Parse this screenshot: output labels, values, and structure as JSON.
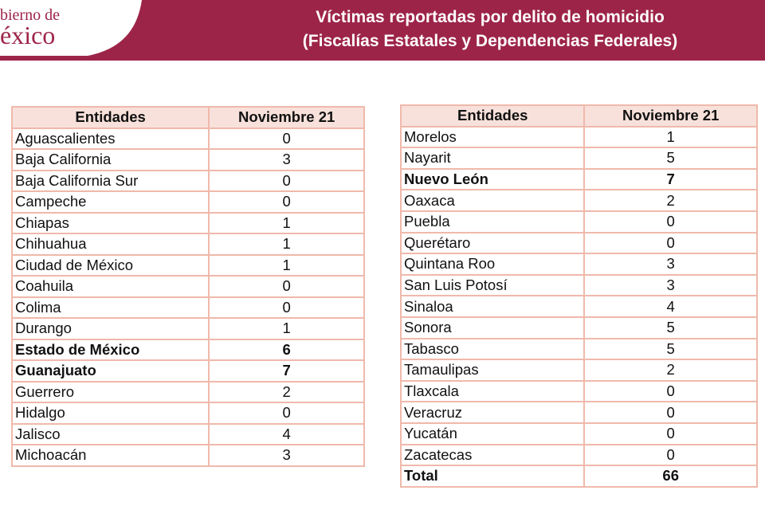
{
  "header": {
    "logo": [
      "bierno de",
      "éxico"
    ],
    "title": [
      "Víctimas reportadas por delito de homicidio",
      "(Fiscalías Estatales y Dependencias Federales)"
    ]
  },
  "tables": [
    {
      "columns": [
        "Entidades",
        "Noviembre 21"
      ],
      "rows": [
        {
          "entity": "Aguascalientes",
          "value": 0
        },
        {
          "entity": "Baja California",
          "value": 3
        },
        {
          "entity": "Baja California Sur",
          "value": 0
        },
        {
          "entity": "Campeche",
          "value": 0
        },
        {
          "entity": "Chiapas",
          "value": 1
        },
        {
          "entity": "Chihuahua",
          "value": 1
        },
        {
          "entity": "Ciudad de México",
          "value": 1
        },
        {
          "entity": "Coahuila",
          "value": 0
        },
        {
          "entity": "Colima",
          "value": 0
        },
        {
          "entity": "Durango",
          "value": 1
        },
        {
          "entity": "Estado de México",
          "value": 6,
          "bold": true
        },
        {
          "entity": "Guanajuato",
          "value": 7,
          "bold": true
        },
        {
          "entity": "Guerrero",
          "value": 2
        },
        {
          "entity": "Hidalgo",
          "value": 0
        },
        {
          "entity": "Jalisco",
          "value": 4
        },
        {
          "entity": "Michoacán",
          "value": 3
        }
      ]
    },
    {
      "columns": [
        "Entidades",
        "Noviembre 21"
      ],
      "rows": [
        {
          "entity": "Morelos",
          "value": 1
        },
        {
          "entity": "Nayarit",
          "value": 5
        },
        {
          "entity": "Nuevo León",
          "value": 7,
          "bold": true
        },
        {
          "entity": "Oaxaca",
          "value": 2
        },
        {
          "entity": "Puebla",
          "value": 0
        },
        {
          "entity": "Querétaro",
          "value": 0
        },
        {
          "entity": "Quintana Roo",
          "value": 3
        },
        {
          "entity": "San Luis Potosí",
          "value": 3
        },
        {
          "entity": "Sinaloa",
          "value": 4
        },
        {
          "entity": "Sonora",
          "value": 5
        },
        {
          "entity": "Tabasco",
          "value": 5
        },
        {
          "entity": "Tamaulipas",
          "value": 2
        },
        {
          "entity": "Tlaxcala",
          "value": 0
        },
        {
          "entity": "Veracruz",
          "value": 0
        },
        {
          "entity": "Yucatán",
          "value": 0
        },
        {
          "entity": "Zacatecas",
          "value": 0
        },
        {
          "entity": "Total",
          "value": 66,
          "bold": true
        }
      ]
    }
  ]
}
